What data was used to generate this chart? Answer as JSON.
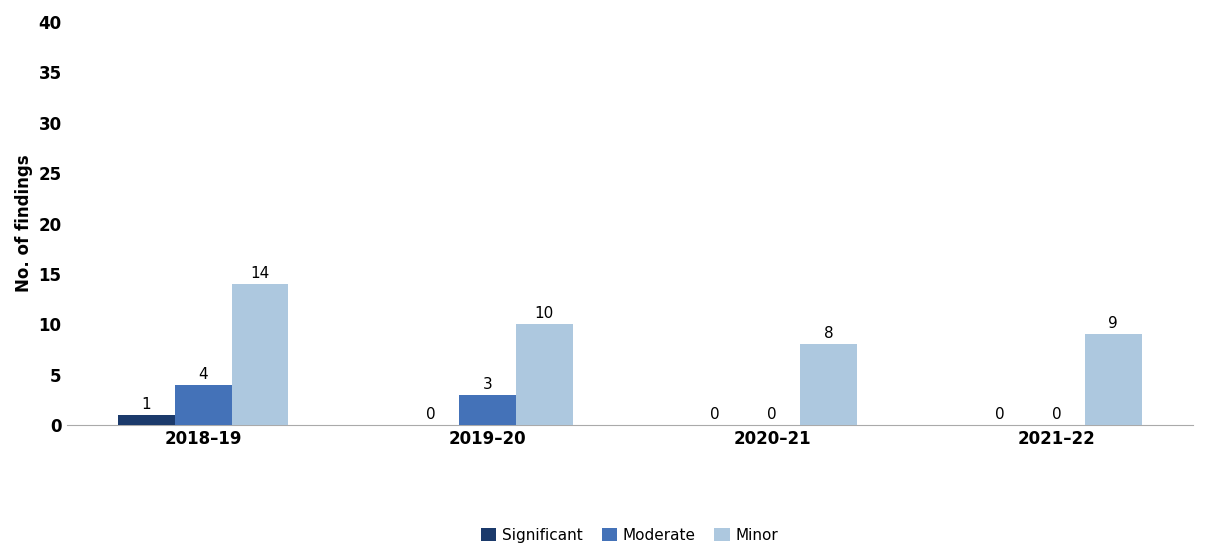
{
  "categories": [
    "2018–19",
    "2019–20",
    "2020–21",
    "2021–22"
  ],
  "series": {
    "Significant": [
      1,
      0,
      0,
      0
    ],
    "Moderate": [
      4,
      3,
      0,
      0
    ],
    "Minor": [
      14,
      10,
      8,
      9
    ]
  },
  "colors": {
    "Significant": "#1b3a6b",
    "Moderate": "#4472b8",
    "Minor": "#adc8df"
  },
  "ylabel": "No. of findings",
  "ylim": [
    0,
    40
  ],
  "yticks": [
    0,
    5,
    10,
    15,
    20,
    25,
    30,
    35,
    40
  ],
  "bar_width": 0.2,
  "background_color": "#ffffff",
  "label_fontsize": 12,
  "tick_fontsize": 12,
  "legend_fontsize": 11,
  "annotation_fontsize": 11
}
